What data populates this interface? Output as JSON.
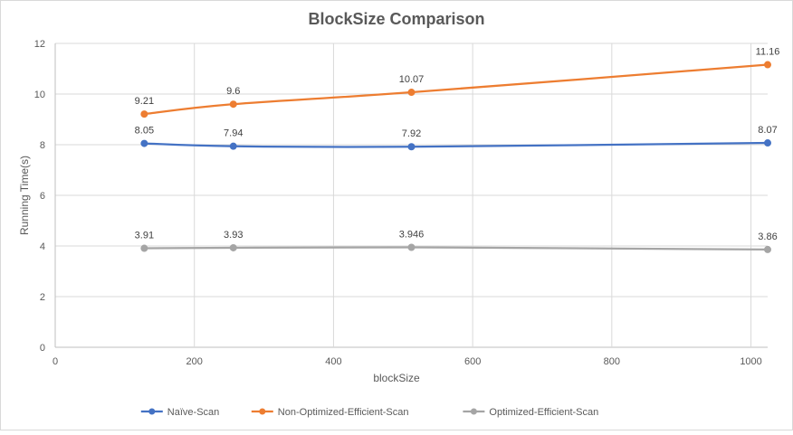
{
  "chart_data": {
    "type": "scatter",
    "title": "BlockSize Comparison",
    "xlabel": "blockSize",
    "ylabel": "Running Time(s)",
    "xlim": [
      0,
      1024
    ],
    "ylim": [
      0,
      12
    ],
    "x_ticks": [
      0,
      200,
      400,
      600,
      800,
      1000
    ],
    "y_ticks": [
      0,
      2,
      4,
      6,
      8,
      10,
      12
    ],
    "x": [
      128,
      256,
      512,
      1024
    ],
    "grid": true,
    "smooth_lines": true,
    "markers": true,
    "legend_position": "bottom",
    "series": [
      {
        "name": "Naïve-Scan",
        "color": "#4472C4",
        "values": [
          8.05,
          7.94,
          7.92,
          8.07
        ],
        "labels": [
          "8.05",
          "7.94",
          "7.92",
          "8.07"
        ]
      },
      {
        "name": "Non-Optimized-Efficient-Scan",
        "color": "#ED7D31",
        "values": [
          9.21,
          9.6,
          10.07,
          11.16
        ],
        "labels": [
          "9.21",
          "9.6",
          "10.07",
          "11.16"
        ]
      },
      {
        "name": "Optimized-Efficient-Scan",
        "color": "#A5A5A5",
        "values": [
          3.91,
          3.93,
          3.946,
          3.86
        ],
        "labels": [
          "3.91",
          "3.93",
          "3.946",
          "3.86"
        ]
      }
    ]
  }
}
